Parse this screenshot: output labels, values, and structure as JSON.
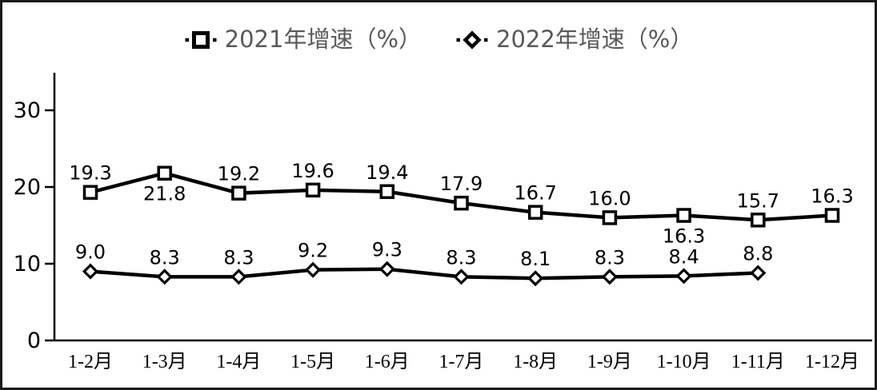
{
  "chart": {
    "legend": [
      {
        "label": "2021年增速（%）",
        "marker": "square"
      },
      {
        "label": "2022年增速（%）",
        "marker": "diamond"
      }
    ]
  },
  "chart_data": {
    "type": "line",
    "categories": [
      "1-2月",
      "1-3月",
      "1-4月",
      "1-5月",
      "1-6月",
      "1-7月",
      "1-8月",
      "1-9月",
      "1-10月",
      "1-11月",
      "1-12月"
    ],
    "series": [
      {
        "name": "2021年增速（%）",
        "marker": "square",
        "values": [
          19.3,
          21.8,
          19.2,
          19.6,
          19.4,
          17.9,
          16.7,
          16.0,
          16.3,
          15.7,
          16.3
        ],
        "label_below_indices": [
          1,
          8
        ]
      },
      {
        "name": "2022年增速（%）",
        "marker": "diamond",
        "values": [
          9.0,
          8.3,
          8.3,
          9.2,
          9.3,
          8.3,
          8.1,
          8.3,
          8.4,
          8.8
        ],
        "label_below_indices": []
      }
    ],
    "yticks": [
      0,
      10,
      20,
      30
    ],
    "ylim": [
      0,
      34.8
    ],
    "grid": false,
    "legend_position": "top-center",
    "value_label_decimals": 1,
    "colors": {
      "series_line": "#000000",
      "marker_fill": "#ffffff",
      "value_labels": "#000000",
      "axis": "#000000",
      "tick_labels": "#000000",
      "legend_text": "#595959",
      "background": "#ffffff",
      "border": "#1a1a1a"
    }
  }
}
